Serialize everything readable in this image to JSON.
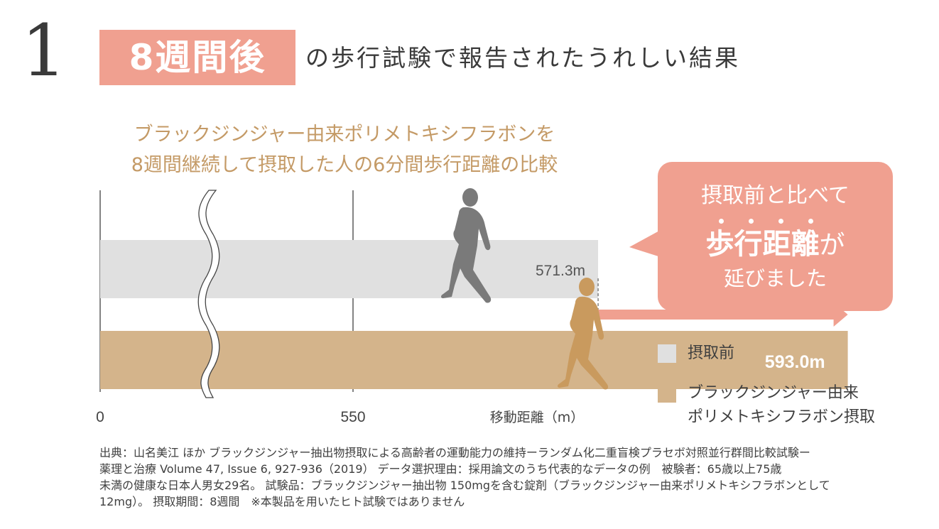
{
  "header": {
    "number": "1",
    "badge": "8週間後",
    "title_rest": "の歩行試験で報告されたうれしい結果"
  },
  "subtitle": {
    "line1": "ブラックジンジャー由来ポリメトキシフラボンを",
    "line2": "8週間継続して摂取した人の6分間歩行距離の比較"
  },
  "chart_data": {
    "type": "bar",
    "orientation": "horizontal",
    "axis_break": true,
    "xlabel": "移動距離（m）",
    "tick_labels": [
      "0",
      "550"
    ],
    "xlim_after_break": [
      550,
      600
    ],
    "series": [
      {
        "name": "摂取前",
        "value": 571.3,
        "label": "571.3m",
        "color": "#e0e0e0"
      },
      {
        "name": "ブラックジンジャー由来ポリメトキシフラボン摂取",
        "value": 593.0,
        "label": "593.0m",
        "color": "#d4b48b"
      }
    ]
  },
  "callout": {
    "line1": "摂取前と比べて",
    "emphasis": "歩行距離",
    "particle": "が",
    "line3": "延びました"
  },
  "legend": [
    {
      "label_lines": [
        "摂取前"
      ],
      "color": "#e0e0e0"
    },
    {
      "label_lines": [
        "ブラックジンジャー由来",
        "ポリメトキシフラボン摂取"
      ],
      "color": "#d4b48b"
    }
  ],
  "footnote": [
    "出典：山名美江 ほか ブラックジンジャー抽出物摂取による高齢者の運動能力の維持ーランダム化二重盲検プラセボ対照並行群間比較試験ー",
    "薬理と治療 Volume 47, Issue 6, 927-936（2019） データ選択理由：採用論文のうち代表的なデータの例　被験者：65歳以上75歳",
    "未満の健康な日本人男女29名。 試験品：ブラックジンジャー抽出物 150mgを含む錠剤（ブラックジンジャー由来ポリメトキシフラボンとして",
    "12mg）。 摂取期間：8週間　※本製品を用いたヒト試験ではありません"
  ],
  "colors": {
    "accent": "#f0a090",
    "gold": "#c49a66",
    "before_figure": "#7a7a7a",
    "after_figure": "#c99a5e"
  }
}
